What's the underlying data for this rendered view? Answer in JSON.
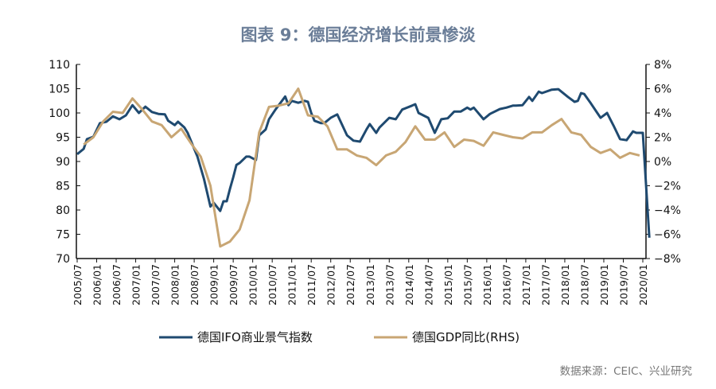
{
  "chart_data": {
    "type": "line",
    "title": "图表 9：德国经济增长前景惨淡",
    "source": "数据来源：CEIC、兴业研究",
    "y_left": {
      "range": [
        70,
        110
      ],
      "ticks": [
        "70",
        "75",
        "80",
        "85",
        "90",
        "95",
        "100",
        "105",
        "110"
      ]
    },
    "y_right": {
      "range": [
        -8,
        8
      ],
      "ticks": [
        "-8%",
        "-6%",
        "-4%",
        "-2%",
        "0%",
        "2%",
        "4%",
        "6%",
        "8%"
      ]
    },
    "x_ticks": [
      "2005/07",
      "2006/01",
      "2006/07",
      "2007/01",
      "2007/07",
      "2008/01",
      "2008/07",
      "2009/01",
      "2009/07",
      "2010/01",
      "2010/07",
      "2011/01",
      "2011/07",
      "2012/01",
      "2012/07",
      "2013/01",
      "2013/07",
      "2014/01",
      "2014/07",
      "2015/01",
      "2015/07",
      "2016/01",
      "2016/07",
      "2017/01",
      "2017/07",
      "2018/01",
      "2018/07",
      "2019/01",
      "2019/07",
      "2020/01"
    ],
    "grid": false,
    "legend_position": "bottom",
    "series": [
      {
        "name": "德国IFO商业景气指数",
        "axis": "left",
        "color": "#1f4a70",
        "points": [
          [
            "2005/07",
            91.5
          ],
          [
            "2005/09",
            92.6
          ],
          [
            "2005/10",
            94.6
          ],
          [
            "2005/12",
            95.1
          ],
          [
            "2006/02",
            97.9
          ],
          [
            "2006/04",
            98.2
          ],
          [
            "2006/06",
            99.3
          ],
          [
            "2006/08",
            98.7
          ],
          [
            "2006/10",
            99.5
          ],
          [
            "2006/12",
            101.6
          ],
          [
            "2007/02",
            100
          ],
          [
            "2007/04",
            101.3
          ],
          [
            "2007/06",
            100.2
          ],
          [
            "2007/08",
            99.8
          ],
          [
            "2007/10",
            99.7
          ],
          [
            "2007/11",
            98.4
          ],
          [
            "2008/01",
            97.5
          ],
          [
            "2008/02",
            98.2
          ],
          [
            "2008/04",
            97
          ],
          [
            "2008/05",
            95.9
          ],
          [
            "2008/07",
            92.6
          ],
          [
            "2008/08",
            91
          ],
          [
            "2008/10",
            86.4
          ],
          [
            "2008/12",
            80.7
          ],
          [
            "2009/01",
            81.5
          ],
          [
            "2009/03",
            79.8
          ],
          [
            "2009/04",
            81.8
          ],
          [
            "2009/05",
            81.8
          ],
          [
            "2009/06",
            84.4
          ],
          [
            "2009/07",
            86.7
          ],
          [
            "2009/08",
            89.3
          ],
          [
            "2009/09",
            89.7
          ],
          [
            "2009/11",
            91
          ],
          [
            "2009/12",
            91
          ],
          [
            "2010/02",
            90.3
          ],
          [
            "2010/03",
            95.4
          ],
          [
            "2010/05",
            96.6
          ],
          [
            "2010/06",
            98.7
          ],
          [
            "2010/08",
            100.7
          ],
          [
            "2010/11",
            103.4
          ],
          [
            "2010/12",
            101.6
          ],
          [
            "2011/01",
            102.5
          ],
          [
            "2011/03",
            102.1
          ],
          [
            "2011/05",
            102.5
          ],
          [
            "2011/06",
            102.3
          ],
          [
            "2011/07",
            100
          ],
          [
            "2011/08",
            98.4
          ],
          [
            "2011/10",
            97.9
          ],
          [
            "2011/11",
            97.9
          ],
          [
            "2012/01",
            99
          ],
          [
            "2012/03",
            99.7
          ],
          [
            "2012/06",
            95.4
          ],
          [
            "2012/08",
            94.3
          ],
          [
            "2012/10",
            94.1
          ],
          [
            "2012/12",
            96.6
          ],
          [
            "2013/01",
            97.7
          ],
          [
            "2013/03",
            95.9
          ],
          [
            "2013/04",
            97
          ],
          [
            "2013/07",
            99
          ],
          [
            "2013/09",
            98.7
          ],
          [
            "2013/11",
            100.7
          ],
          [
            "2014/02",
            101.5
          ],
          [
            "2014/03",
            101.8
          ],
          [
            "2014/04",
            100
          ],
          [
            "2014/07",
            99
          ],
          [
            "2014/09",
            95.9
          ],
          [
            "2014/11",
            98.7
          ],
          [
            "2015/01",
            98.9
          ],
          [
            "2015/03",
            100.3
          ],
          [
            "2015/05",
            100.3
          ],
          [
            "2015/07",
            101.1
          ],
          [
            "2015/08",
            100.7
          ],
          [
            "2015/09",
            101.1
          ],
          [
            "2015/12",
            98.7
          ],
          [
            "2016/02",
            99.8
          ],
          [
            "2016/05",
            100.8
          ],
          [
            "2016/07",
            101.1
          ],
          [
            "2016/09",
            101.5
          ],
          [
            "2016/10",
            101.5
          ],
          [
            "2016/12",
            101.6
          ],
          [
            "2017/02",
            103.3
          ],
          [
            "2017/03",
            102.5
          ],
          [
            "2017/05",
            104.4
          ],
          [
            "2017/06",
            104.1
          ],
          [
            "2017/09",
            104.8
          ],
          [
            "2017/11",
            104.9
          ],
          [
            "2018/02",
            103.3
          ],
          [
            "2018/04",
            102.3
          ],
          [
            "2018/05",
            102.5
          ],
          [
            "2018/06",
            104.1
          ],
          [
            "2018/07",
            103.9
          ],
          [
            "2018/09",
            102
          ],
          [
            "2018/11",
            100
          ],
          [
            "2018/12",
            99
          ],
          [
            "2019/02",
            100
          ],
          [
            "2019/03",
            98.7
          ],
          [
            "2019/04",
            97.4
          ],
          [
            "2019/06",
            94.6
          ],
          [
            "2019/08",
            94.4
          ],
          [
            "2019/10",
            96.2
          ],
          [
            "2019/11",
            95.9
          ],
          [
            "2020/01",
            95.9
          ],
          [
            "2020/03",
            74.3
          ]
        ]
      },
      {
        "name": "德国GDP同比(RHS)",
        "axis": "right",
        "color": "#c8a674",
        "points": [
          [
            "2005/09",
            1.4
          ],
          [
            "2005/12",
            2.0
          ],
          [
            "2006/03",
            3.3
          ],
          [
            "2006/06",
            4.1
          ],
          [
            "2006/09",
            4.0
          ],
          [
            "2006/12",
            5.2
          ],
          [
            "2007/03",
            4.3
          ],
          [
            "2007/06",
            3.3
          ],
          [
            "2007/09",
            3.0
          ],
          [
            "2007/12",
            2.0
          ],
          [
            "2008/03",
            2.7
          ],
          [
            "2008/06",
            1.5
          ],
          [
            "2008/09",
            0.4
          ],
          [
            "2008/12",
            -2.0
          ],
          [
            "2009/03",
            -7.0
          ],
          [
            "2009/06",
            -6.6
          ],
          [
            "2009/09",
            -5.6
          ],
          [
            "2009/12",
            -3.2
          ],
          [
            "2010/03",
            2.4
          ],
          [
            "2010/06",
            4.5
          ],
          [
            "2010/09",
            4.6
          ],
          [
            "2010/12",
            4.8
          ],
          [
            "2011/03",
            6.0
          ],
          [
            "2011/06",
            3.8
          ],
          [
            "2011/09",
            3.7
          ],
          [
            "2011/12",
            2.9
          ],
          [
            "2012/03",
            1.0
          ],
          [
            "2012/06",
            1.0
          ],
          [
            "2012/09",
            0.5
          ],
          [
            "2012/12",
            0.3
          ],
          [
            "2013/03",
            -0.3
          ],
          [
            "2013/06",
            0.5
          ],
          [
            "2013/09",
            0.8
          ],
          [
            "2013/12",
            1.6
          ],
          [
            "2014/03",
            2.9
          ],
          [
            "2014/06",
            1.8
          ],
          [
            "2014/09",
            1.8
          ],
          [
            "2014/12",
            2.4
          ],
          [
            "2015/03",
            1.2
          ],
          [
            "2015/06",
            1.8
          ],
          [
            "2015/09",
            1.7
          ],
          [
            "2015/12",
            1.3
          ],
          [
            "2016/03",
            2.4
          ],
          [
            "2016/06",
            2.2
          ],
          [
            "2016/09",
            2.0
          ],
          [
            "2016/12",
            1.9
          ],
          [
            "2017/03",
            2.4
          ],
          [
            "2017/06",
            2.4
          ],
          [
            "2017/09",
            3.0
          ],
          [
            "2017/12",
            3.5
          ],
          [
            "2018/03",
            2.4
          ],
          [
            "2018/06",
            2.2
          ],
          [
            "2018/09",
            1.2
          ],
          [
            "2018/12",
            0.7
          ],
          [
            "2019/03",
            1.0
          ],
          [
            "2019/06",
            0.3
          ],
          [
            "2019/09",
            0.7
          ],
          [
            "2019/12",
            0.5
          ]
        ]
      }
    ]
  }
}
